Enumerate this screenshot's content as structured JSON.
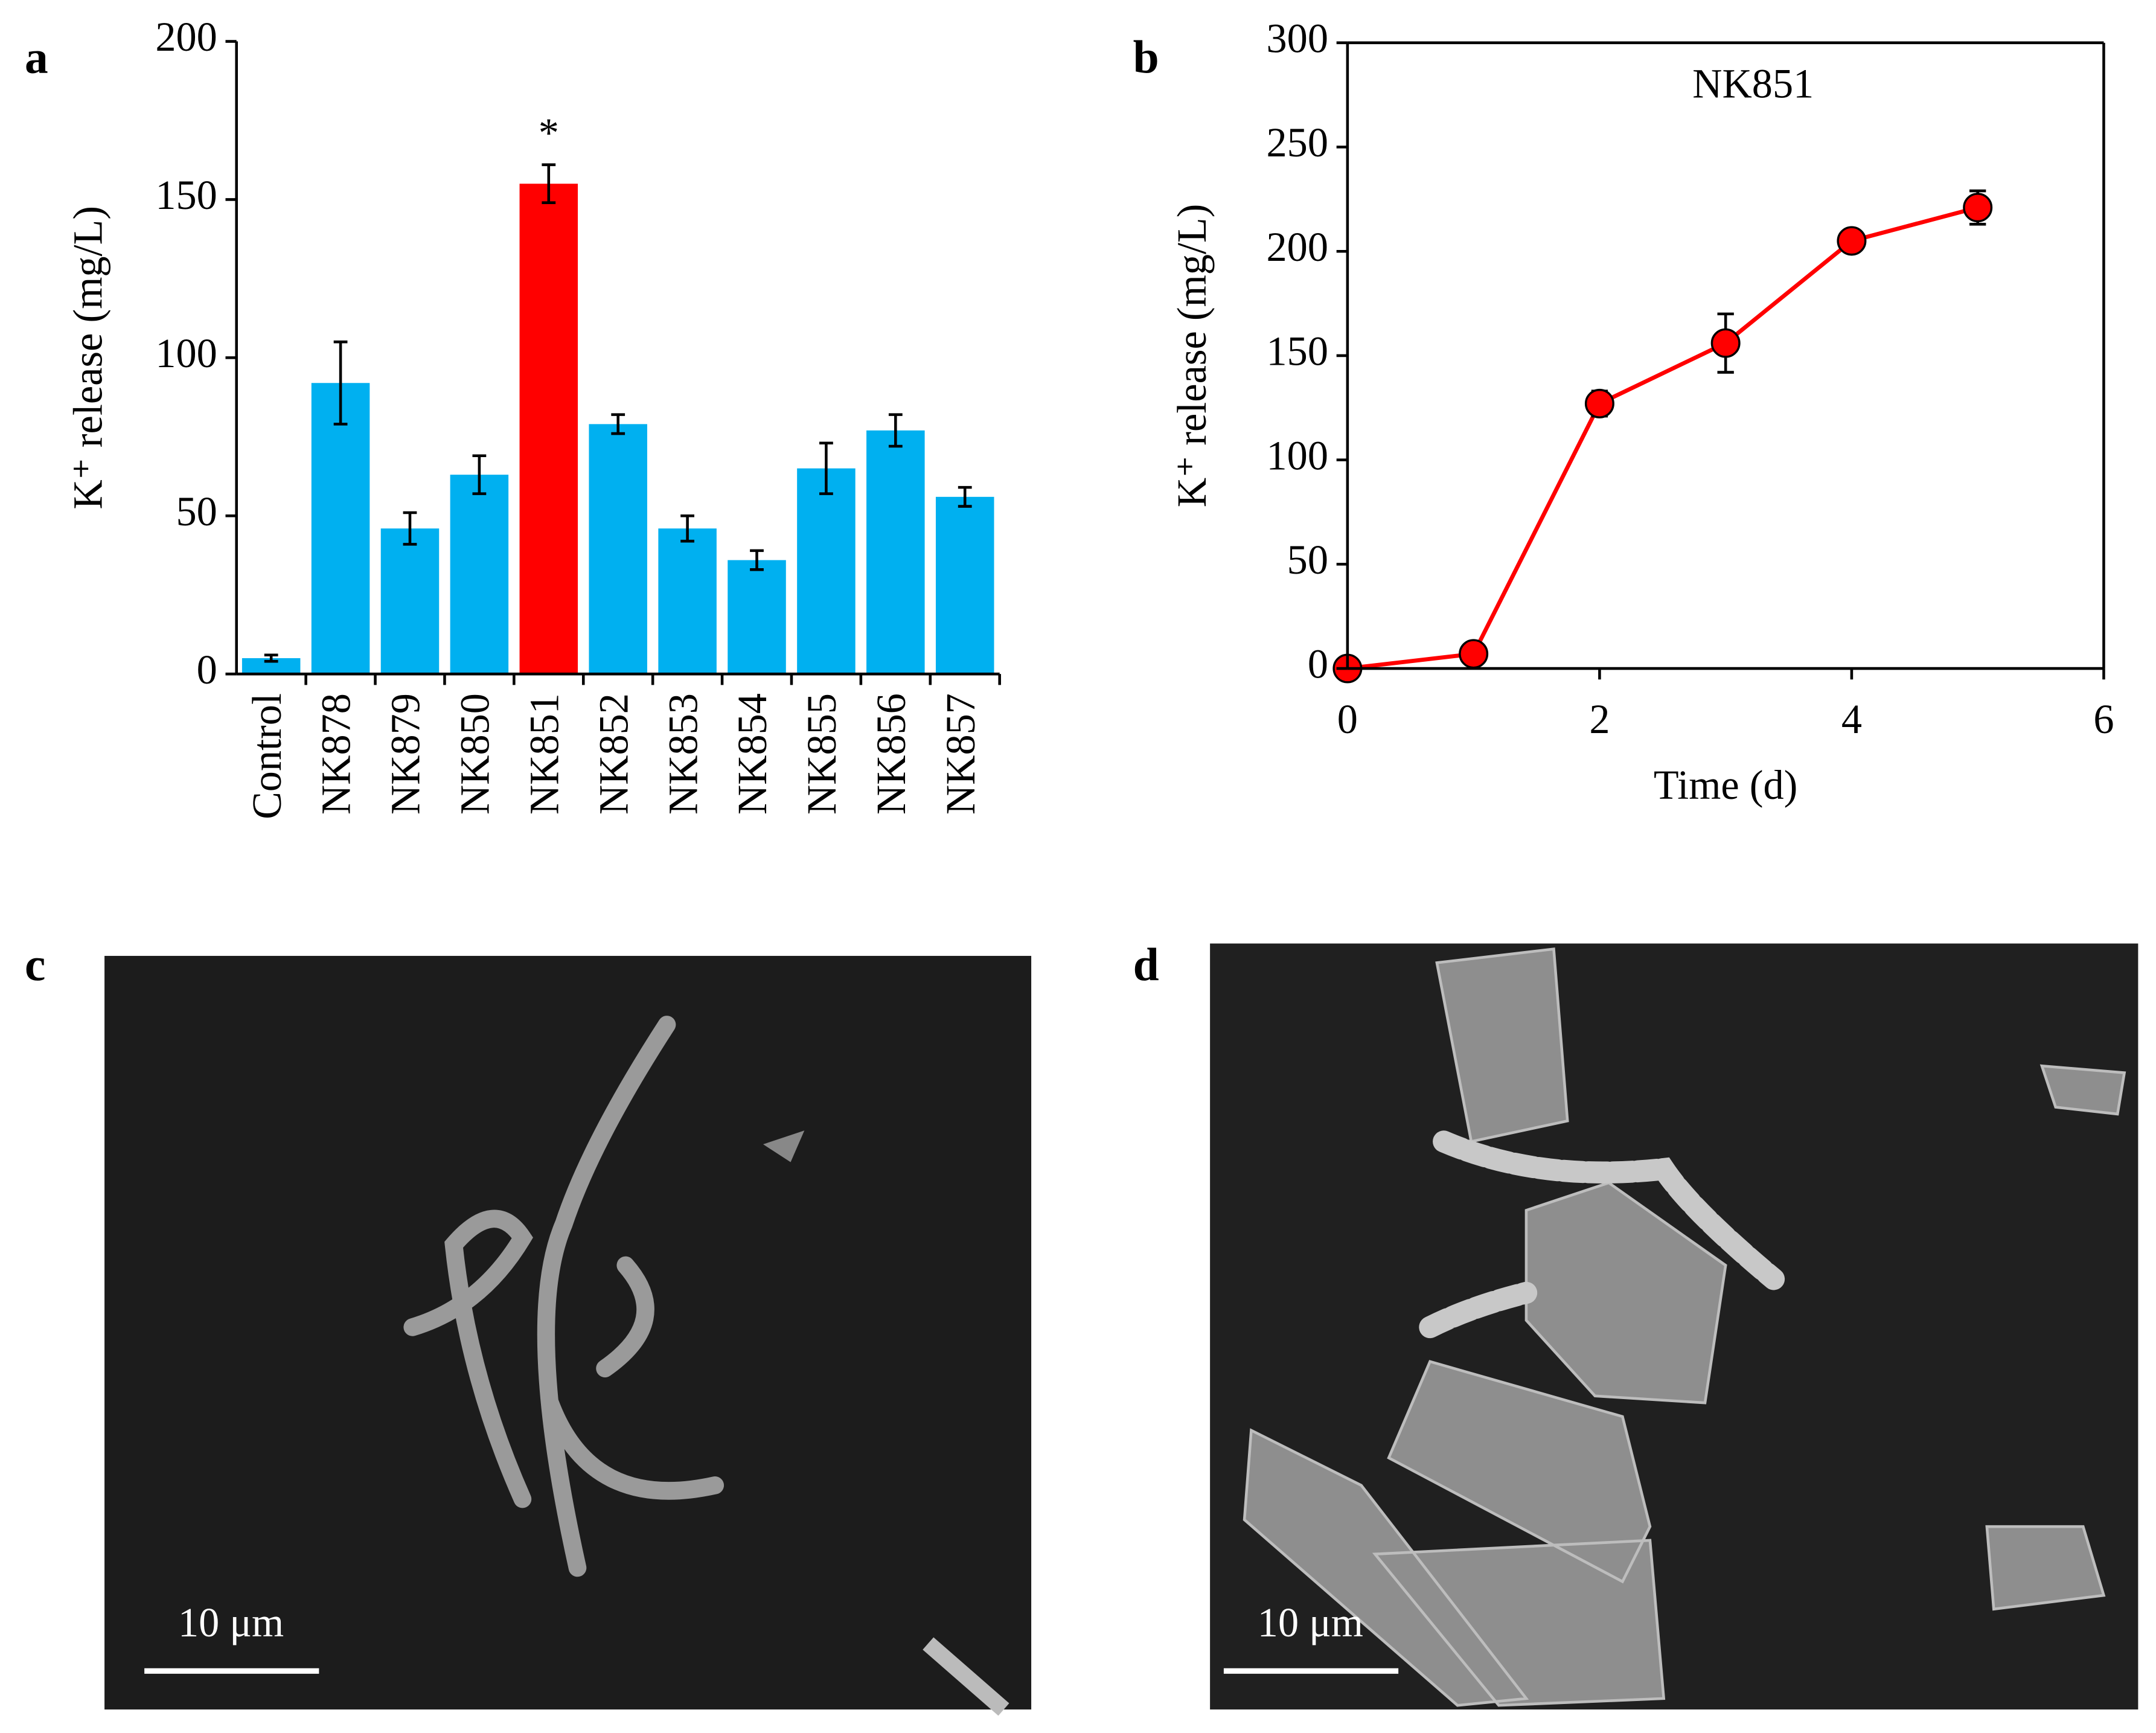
{
  "chart_data": [
    {
      "type": "bar",
      "panel": "a",
      "ylabel": "K⁺ release (mg/L)",
      "categories": [
        "Control",
        "NK878",
        "NK879",
        "NK850",
        "NK851",
        "NK852",
        "NK853",
        "NK854",
        "NK855",
        "NK856",
        "NK857"
      ],
      "values": [
        5,
        92,
        46,
        63,
        155,
        79,
        46,
        36,
        65,
        77,
        56
      ],
      "errors": [
        1,
        13,
        5,
        6,
        6,
        3,
        4,
        3,
        8,
        5,
        3
      ],
      "colors": [
        "#00b0f0",
        "#00b0f0",
        "#00b0f0",
        "#00b0f0",
        "#ff0000",
        "#00b0f0",
        "#00b0f0",
        "#00b0f0",
        "#00b0f0",
        "#00b0f0",
        "#00b0f0"
      ],
      "annotations": [
        {
          "text": "*",
          "category": "NK851"
        }
      ],
      "ylim": [
        0,
        200
      ],
      "yticks": [
        0,
        50,
        100,
        150,
        200
      ],
      "frame": false
    },
    {
      "type": "line",
      "panel": "b",
      "title": "NK851",
      "xlabel": "Time (d)",
      "ylabel": "K⁺ release (mg/L)",
      "x": [
        0,
        1,
        2,
        3,
        4,
        5
      ],
      "series": [
        {
          "name": "NK851",
          "color": "#ff0000",
          "values": [
            0,
            7,
            127,
            156,
            205,
            221
          ],
          "errors": [
            0,
            0,
            6,
            14,
            3,
            8
          ]
        }
      ],
      "xlim": [
        0,
        6
      ],
      "xticks": [
        0,
        2,
        4,
        6
      ],
      "ylim": [
        0,
        300
      ],
      "yticks": [
        0,
        50,
        100,
        150,
        200,
        250,
        300
      ],
      "frame": true
    }
  ],
  "images": [
    {
      "panel": "c",
      "scale_bar": "10 μm"
    },
    {
      "panel": "d",
      "scale_bar": "10 μm"
    }
  ]
}
